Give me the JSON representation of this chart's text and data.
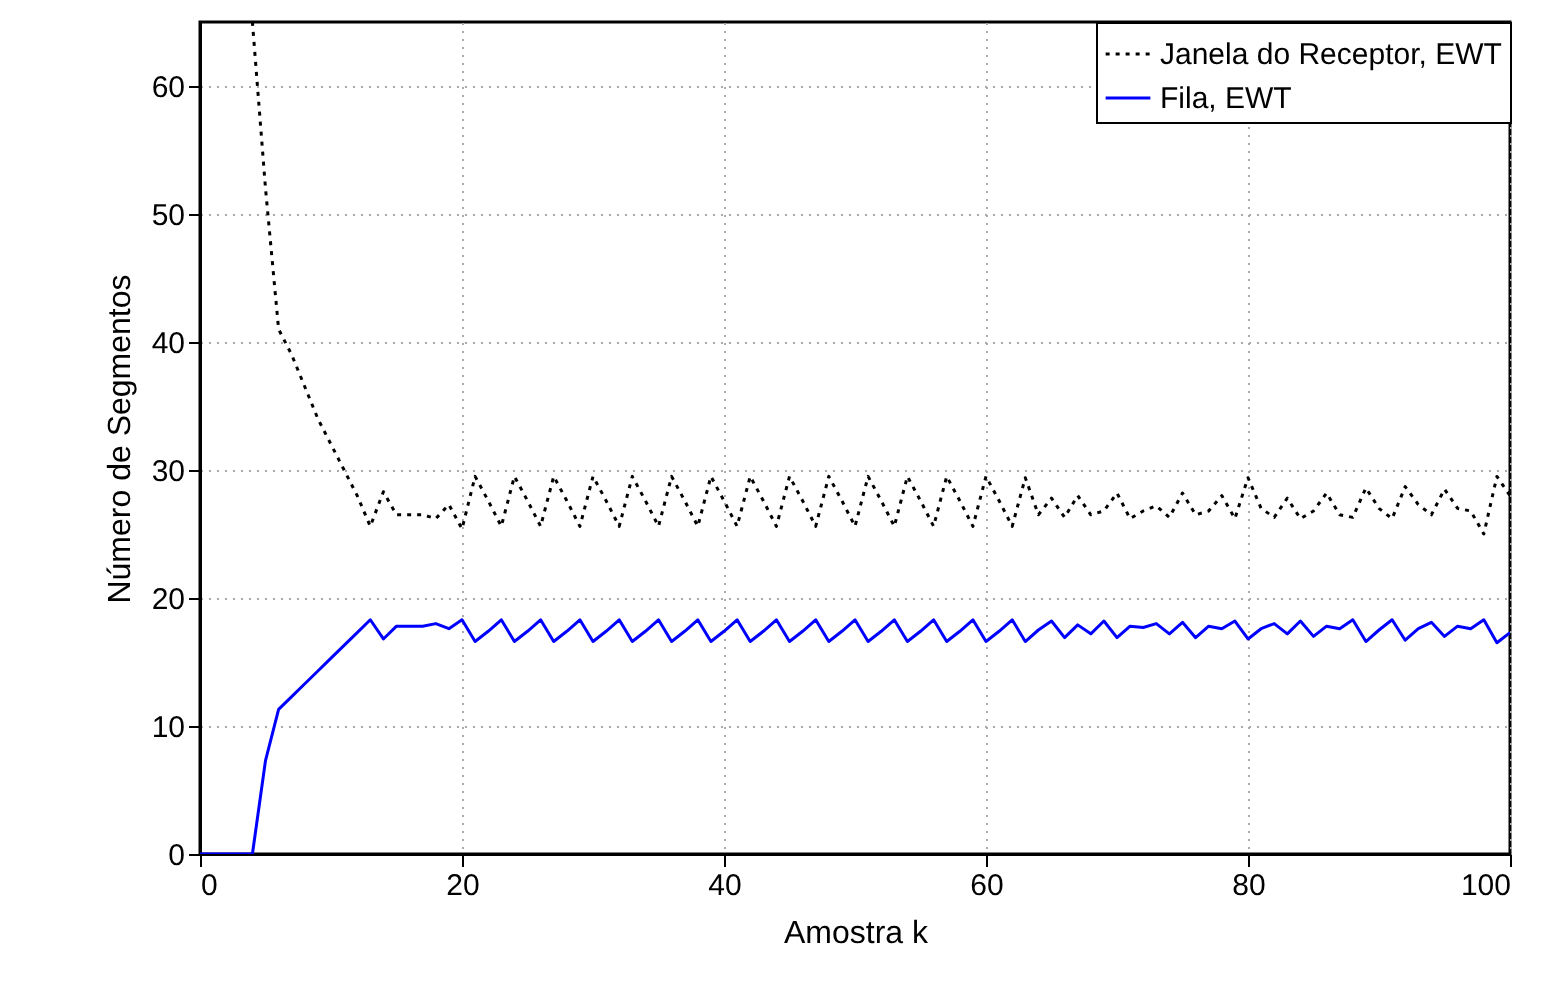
{
  "chart_data": {
    "type": "line",
    "xlabel": "Amostra k",
    "ylabel": "Número de Segmentos",
    "x": [
      0,
      1,
      2,
      3,
      4,
      5,
      6,
      7,
      8,
      9,
      10,
      11,
      12,
      13,
      14,
      15,
      16,
      17,
      18,
      19,
      20,
      21,
      22,
      23,
      24,
      25,
      26,
      27,
      28,
      29,
      30,
      31,
      32,
      33,
      34,
      35,
      36,
      37,
      38,
      39,
      40,
      41,
      42,
      43,
      44,
      45,
      46,
      47,
      48,
      49,
      50,
      51,
      52,
      53,
      54,
      55,
      56,
      57,
      58,
      59,
      60,
      61,
      62,
      63,
      64,
      65,
      66,
      67,
      68,
      69,
      70,
      71,
      72,
      73,
      74,
      75,
      76,
      77,
      78,
      79,
      80,
      81,
      82,
      83,
      84,
      85,
      86,
      87,
      88,
      89,
      90,
      91,
      92,
      93,
      94,
      95,
      96,
      97,
      98,
      99,
      100
    ],
    "series": [
      {
        "name": "Janela do Receptor, EWT",
        "color": "#000000",
        "line_style": "dotted",
        "values": [
          null,
          null,
          null,
          null,
          65,
          52,
          41,
          39,
          36.5,
          34,
          32,
          30,
          28,
          25.6,
          28.3,
          26.5,
          26.5,
          26.5,
          26.2,
          27.3,
          25.4,
          29.5,
          27.6,
          25.6,
          29.5,
          27.6,
          25.6,
          29.5,
          27.6,
          25.6,
          29.5,
          27.6,
          25.6,
          29.5,
          27.6,
          25.6,
          29.5,
          27.6,
          25.6,
          29.5,
          27.6,
          25.6,
          29.5,
          27.6,
          25.6,
          29.5,
          27.6,
          25.6,
          29.5,
          27.6,
          25.6,
          29.5,
          27.6,
          25.6,
          29.5,
          27.6,
          25.6,
          29.5,
          27.6,
          25.6,
          29.5,
          27.6,
          25.6,
          29.4,
          26.5,
          27.8,
          26.3,
          28.0,
          26.5,
          26.8,
          28.2,
          26.2,
          26.8,
          27.2,
          26.3,
          28.2,
          26.5,
          26.8,
          28.0,
          26.2,
          29.4,
          27.0,
          26.3,
          27.8,
          26.2,
          26.8,
          28.2,
          26.5,
          26.3,
          28.6,
          27.0,
          26.2,
          28.7,
          27.3,
          26.5,
          28.5,
          27.0,
          26.8,
          25.0,
          29.5,
          28.0
        ]
      },
      {
        "name": "Fila, EWT",
        "color": "#0000ff",
        "line_style": "solid",
        "values": [
          0,
          0,
          0,
          0,
          0,
          7.3,
          11.3,
          12.3,
          13.3,
          14.3,
          15.3,
          16.3,
          17.3,
          18.3,
          16.8,
          17.8,
          17.8,
          17.8,
          18.0,
          17.6,
          18.3,
          16.6,
          17.4,
          18.3,
          16.6,
          17.4,
          18.3,
          16.6,
          17.4,
          18.3,
          16.6,
          17.4,
          18.3,
          16.6,
          17.4,
          18.3,
          16.6,
          17.4,
          18.3,
          16.6,
          17.4,
          18.3,
          16.6,
          17.4,
          18.3,
          16.6,
          17.4,
          18.3,
          16.6,
          17.4,
          18.3,
          16.6,
          17.4,
          18.3,
          16.6,
          17.4,
          18.3,
          16.6,
          17.4,
          18.3,
          16.6,
          17.4,
          18.3,
          16.6,
          17.5,
          18.2,
          16.9,
          17.9,
          17.2,
          18.2,
          16.9,
          17.8,
          17.7,
          18.0,
          17.2,
          18.1,
          16.9,
          17.8,
          17.6,
          18.2,
          16.8,
          17.6,
          18.0,
          17.2,
          18.2,
          17.0,
          17.8,
          17.6,
          18.3,
          16.6,
          17.5,
          18.3,
          16.7,
          17.6,
          18.1,
          17.0,
          17.8,
          17.6,
          18.3,
          16.5,
          17.3
        ]
      }
    ],
    "xlim": [
      0,
      100
    ],
    "xticks": [
      0,
      20,
      40,
      60,
      80,
      100
    ],
    "ylim": [
      0,
      65
    ],
    "yticks": [
      0,
      10,
      20,
      30,
      40,
      50,
      60
    ],
    "grid": true,
    "legend": "top right"
  }
}
